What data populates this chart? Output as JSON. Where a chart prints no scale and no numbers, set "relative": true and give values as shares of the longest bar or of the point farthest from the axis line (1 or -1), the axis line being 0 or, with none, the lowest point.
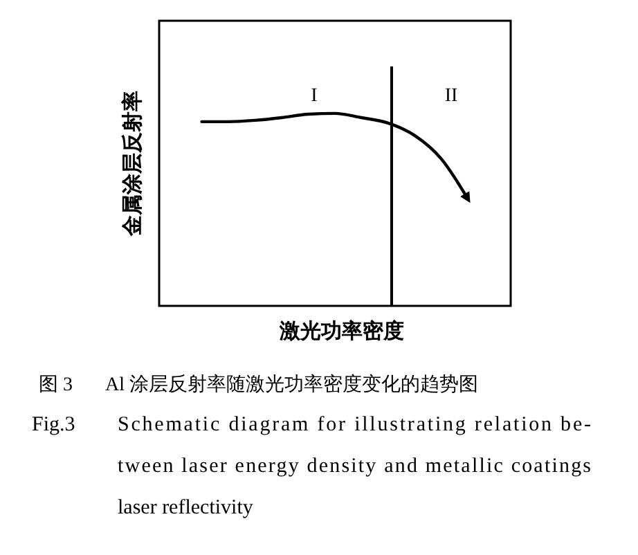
{
  "chart_data": {
    "type": "line",
    "relative": true,
    "xlabel": "激光功率密度",
    "ylabel": "金属涂层反射率",
    "categories": [
      null,
      null,
      null,
      null,
      null,
      null,
      null,
      null,
      null,
      null,
      null,
      null,
      null
    ],
    "values": [
      null,
      0.957,
      0.957,
      0.964,
      0.978,
      0.996,
      1,
      0.978,
      0.95,
      0.885,
      0.763,
      0.554,
      null
    ],
    "color": "#000000",
    "marker": "none",
    "line_style": "solid",
    "annotations": [
      "I",
      "II",
      "图 3",
      "Al 涂层反射率随激光功率密度变化的趋势图",
      "Fig.3",
      "Schematic diagram for illustrating relation be-\ntween laser energy density and metallic coatings\nlaser reflectivity"
    ]
  }
}
